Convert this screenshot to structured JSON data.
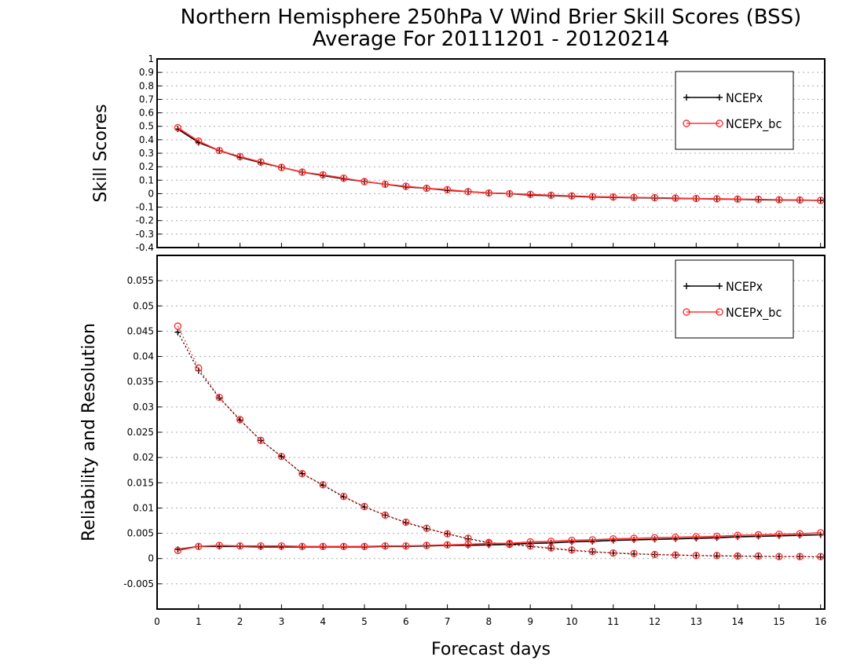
{
  "title_line1": "Northern Hemisphere 250hPa V Wind Brier Skill Scores (BSS)",
  "title_line2": "Average For 20111201 - 20120214",
  "xlabel": "Forecast days",
  "x_ticks": [
    0,
    1,
    2,
    3,
    4,
    5,
    6,
    7,
    8,
    9,
    10,
    11,
    12,
    13,
    14,
    15,
    16
  ],
  "colors": {
    "ncepx": "#000000",
    "ncepx_bc": "#ff3333"
  },
  "chart_data": [
    {
      "type": "line",
      "ylabel": "Skill Scores",
      "xlim": [
        0,
        16.1
      ],
      "ylim": [
        -0.4,
        1
      ],
      "y_ticks": [
        1,
        0.9,
        0.8,
        0.7,
        0.6,
        0.5,
        0.4,
        0.3,
        0.2,
        0.1,
        0,
        -0.1,
        -0.2,
        -0.3,
        -0.4
      ],
      "grid": true,
      "legend": {
        "placement": "top-right",
        "entries": [
          "NCEPx",
          "NCEPx_bc"
        ]
      },
      "x": [
        0.5,
        1,
        1.5,
        2,
        2.5,
        3,
        3.5,
        4,
        4.5,
        5,
        5.5,
        6,
        6.5,
        7,
        7.5,
        8,
        8.5,
        9,
        9.5,
        10,
        10.5,
        11,
        11.5,
        12,
        12.5,
        13,
        13.5,
        14,
        14.5,
        15,
        15.5,
        16
      ],
      "series": [
        {
          "name": "NCEPx",
          "marker": "plus",
          "style": "solid",
          "values": [
            0.48,
            0.38,
            0.32,
            0.27,
            0.23,
            0.195,
            0.16,
            0.135,
            0.11,
            0.09,
            0.07,
            0.05,
            0.04,
            0.025,
            0.015,
            0.005,
            0.0,
            -0.01,
            -0.015,
            -0.02,
            -0.025,
            -0.028,
            -0.03,
            -0.032,
            -0.035,
            -0.037,
            -0.04,
            -0.042,
            -0.045,
            -0.047,
            -0.048,
            -0.05
          ]
        },
        {
          "name": "NCEPx_bc",
          "marker": "circle",
          "style": "solid",
          "values": [
            0.49,
            0.39,
            0.32,
            0.275,
            0.235,
            0.195,
            0.16,
            0.14,
            0.115,
            0.09,
            0.07,
            0.055,
            0.04,
            0.03,
            0.015,
            0.005,
            0.0,
            -0.005,
            -0.012,
            -0.017,
            -0.022,
            -0.025,
            -0.028,
            -0.03,
            -0.033,
            -0.036,
            -0.038,
            -0.04,
            -0.042,
            -0.045,
            -0.047,
            -0.05
          ]
        }
      ]
    },
    {
      "type": "line",
      "ylabel": "Reliability and Resolution",
      "xlim": [
        0,
        16.1
      ],
      "ylim": [
        -0.01,
        0.06
      ],
      "y_ticks": [
        0.055,
        0.05,
        0.045,
        0.04,
        0.035,
        0.03,
        0.025,
        0.02,
        0.015,
        0.01,
        0.005,
        0,
        -0.005
      ],
      "y_tick_labels": [
        "0.055",
        "0.05",
        "0.045",
        "0.04",
        "0.035",
        "0.03",
        "0.025",
        "0.02",
        "0.015",
        "0.01",
        "0.005",
        "0",
        "-0.005"
      ],
      "grid": true,
      "legend": {
        "placement": "top-right",
        "entries": [
          "NCEPx",
          "NCEPx_bc"
        ]
      },
      "x": [
        0.5,
        1,
        1.5,
        2,
        2.5,
        3,
        3.5,
        4,
        4.5,
        5,
        5.5,
        6,
        6.5,
        7,
        7.5,
        8,
        8.5,
        9,
        9.5,
        10,
        10.5,
        11,
        11.5,
        12,
        12.5,
        13,
        13.5,
        14,
        14.5,
        15,
        15.5,
        16
      ],
      "series": [
        {
          "name": "NCEPx",
          "component": "resolution",
          "marker": "plus",
          "style": "dotted",
          "values": [
            0.0448,
            0.0372,
            0.0318,
            0.0274,
            0.0234,
            0.0202,
            0.0168,
            0.0145,
            0.0122,
            0.0102,
            0.0086,
            0.0071,
            0.0059,
            0.0049,
            0.0039,
            0.0031,
            0.0028,
            0.0024,
            0.002,
            0.0016,
            0.0013,
            0.0011,
            0.0009,
            0.0008,
            0.0007,
            0.0006,
            0.0005,
            0.0005,
            0.0004,
            0.0004,
            0.0004,
            0.0003
          ]
        },
        {
          "name": "NCEPx_bc",
          "component": "resolution",
          "marker": "circle",
          "style": "dotted",
          "values": [
            0.046,
            0.0377,
            0.0319,
            0.0275,
            0.0234,
            0.0202,
            0.0168,
            0.0146,
            0.0123,
            0.0103,
            0.0086,
            0.0072,
            0.006,
            0.0049,
            0.004,
            0.0032,
            0.0028,
            0.0025,
            0.0021,
            0.0017,
            0.0014,
            0.0011,
            0.001,
            0.0008,
            0.0007,
            0.0006,
            0.0006,
            0.0005,
            0.0005,
            0.0004,
            0.0004,
            0.0004
          ]
        },
        {
          "name": "NCEPx",
          "component": "reliability",
          "marker": "plus",
          "style": "solid",
          "values": [
            0.0018,
            0.0024,
            0.0024,
            0.0024,
            0.0023,
            0.0023,
            0.0023,
            0.0023,
            0.0023,
            0.0023,
            0.0024,
            0.0024,
            0.0025,
            0.0026,
            0.0026,
            0.0027,
            0.0028,
            0.003,
            0.0031,
            0.0033,
            0.0034,
            0.0036,
            0.0037,
            0.0038,
            0.0039,
            0.004,
            0.0041,
            0.0043,
            0.0044,
            0.0045,
            0.0046,
            0.0047
          ]
        },
        {
          "name": "NCEPx_bc",
          "component": "reliability",
          "marker": "circle",
          "style": "solid",
          "values": [
            0.0016,
            0.0024,
            0.0026,
            0.0025,
            0.0025,
            0.0025,
            0.0024,
            0.0024,
            0.0024,
            0.0024,
            0.0025,
            0.0025,
            0.0026,
            0.0027,
            0.0028,
            0.003,
            0.003,
            0.0033,
            0.0034,
            0.0036,
            0.0037,
            0.0039,
            0.004,
            0.0041,
            0.0042,
            0.0043,
            0.0044,
            0.0046,
            0.0047,
            0.0048,
            0.0049,
            0.0051
          ]
        }
      ]
    }
  ]
}
